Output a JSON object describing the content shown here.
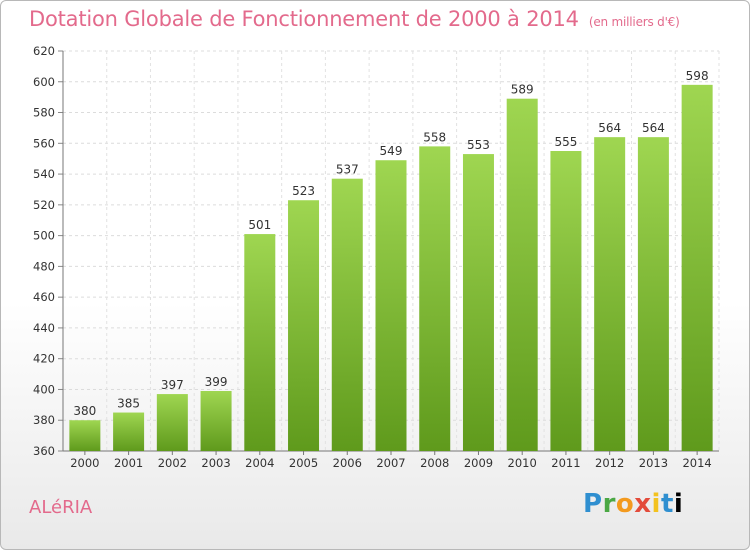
{
  "chart_data": {
    "type": "bar",
    "title": "Dotation Globale de Fonctionnement de 2000 à 2014",
    "subtitle": "(en milliers d'€)",
    "categories": [
      "2000",
      "2001",
      "2002",
      "2003",
      "2004",
      "2005",
      "2006",
      "2007",
      "2008",
      "2009",
      "2010",
      "2011",
      "2012",
      "2013",
      "2014"
    ],
    "values": [
      380,
      385,
      397,
      399,
      501,
      523,
      537,
      549,
      558,
      553,
      589,
      555,
      564,
      564,
      598
    ],
    "ylim": [
      360,
      620
    ],
    "yticks": [
      360,
      380,
      400,
      420,
      440,
      460,
      480,
      500,
      520,
      540,
      560,
      580,
      600,
      620
    ],
    "grid": true,
    "bar_color": "#8cc63f",
    "bar_color_dark": "#5f9a1c"
  },
  "commune": "ALéRIA",
  "logo": [
    "P",
    "r",
    "o",
    "x",
    "i",
    "t",
    "i"
  ],
  "colors": {
    "title": "#e36a8c"
  }
}
